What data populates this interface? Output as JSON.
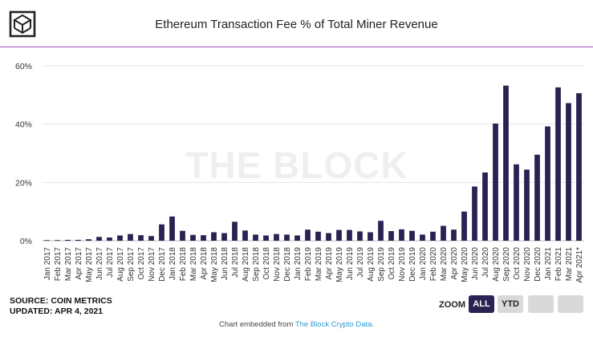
{
  "header": {
    "title": "Ethereum Transaction Fee % of Total Miner Revenue"
  },
  "watermark": "THE BLOCK",
  "footer": {
    "source": "SOURCE: COIN METRICS",
    "updated": "UPDATED: APR 4, 2021",
    "embed_prefix": "Chart embedded from ",
    "embed_link": "The Block Crypto Data",
    "embed_suffix": "."
  },
  "zoom": {
    "label": "ZOOM",
    "all": "ALL",
    "ytd": "YTD",
    "b3": "",
    "b4": ""
  },
  "colors": {
    "bar": "#2b2152",
    "accent_line": "#a54ec5",
    "gridline": "#e6e6e6",
    "watermark": "#efefef",
    "link": "#2a9bd6"
  },
  "chart_data": {
    "type": "bar",
    "title": "Ethereum Transaction Fee % of Total Miner Revenue",
    "xlabel": "",
    "ylabel": "",
    "ylim": [
      0,
      60
    ],
    "yticks": [
      "0%",
      "20%",
      "40%",
      "60%"
    ],
    "grid": true,
    "legend": "none",
    "categories": [
      "Jan 2017",
      "Feb 2017",
      "Mar 2017",
      "Apr 2017",
      "May 2017",
      "Jun 2017",
      "Jul 2017",
      "Aug 2017",
      "Sep 2017",
      "Oct 2017",
      "Nov 2017",
      "Dec 2017",
      "Jan 2018",
      "Feb 2018",
      "Mar 2018",
      "Apr 2018",
      "May 2018",
      "Jun 2018",
      "Jul 2018",
      "Aug 2018",
      "Sep 2018",
      "Oct 2018",
      "Nov 2018",
      "Dec 2018",
      "Jan 2019",
      "Feb 2019",
      "Mar 2019",
      "Apr 2019",
      "May 2019",
      "Jun 2019",
      "Jul 2019",
      "Aug 2019",
      "Sep 2019",
      "Oct 2019",
      "Nov 2019",
      "Dec 2019",
      "Jan 2020",
      "Feb 2020",
      "Mar 2020",
      "Apr 2020",
      "May 2020",
      "Jun 2020",
      "Jul 2020",
      "Aug 2020",
      "Sep 2020",
      "Oct 2020",
      "Nov 2020",
      "Dec 2020",
      "Jan 2021",
      "Feb 2021",
      "Mar 2021",
      "Apr 2021*"
    ],
    "values": [
      0.2,
      0.2,
      0.3,
      0.3,
      0.5,
      1.3,
      1.1,
      1.8,
      2.3,
      1.9,
      1.6,
      5.6,
      8.3,
      3.4,
      2.0,
      1.9,
      2.9,
      2.6,
      6.5,
      3.5,
      2.1,
      1.8,
      2.3,
      2.1,
      1.8,
      3.8,
      3.1,
      2.6,
      3.7,
      3.7,
      3.2,
      2.9,
      6.8,
      3.3,
      3.9,
      3.4,
      2.1,
      3.1,
      5.1,
      3.8,
      10.0,
      18.6,
      23.4,
      40.2,
      53.2,
      26.2,
      24.4,
      29.5,
      39.2,
      52.6,
      47.2,
      50.6
    ]
  }
}
